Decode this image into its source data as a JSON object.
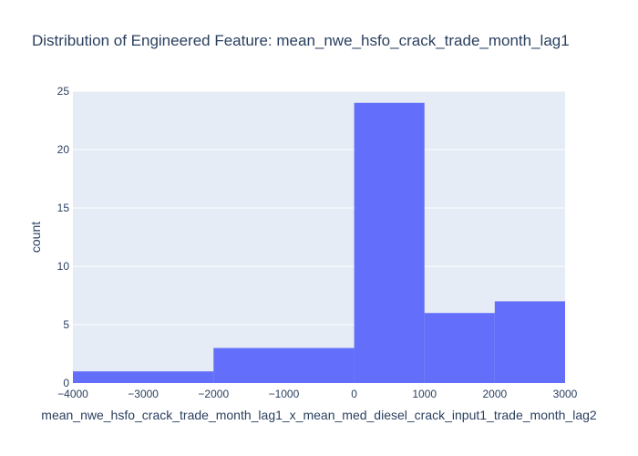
{
  "chart_data": {
    "type": "bar",
    "histogram": true,
    "title": "Distribution of Engineered Feature: mean_nwe_hsfo_crack_trade_month_lag1",
    "xlabel": "mean_nwe_hsfo_crack_trade_month_lag1_x_mean_med_diesel_crack_input1_trade_month_lag2",
    "ylabel": "count",
    "xlim": [
      -4000,
      3000
    ],
    "ylim": [
      0,
      25
    ],
    "grid": true,
    "bar_color": "#636efa",
    "plot_background": "#e5ecf6",
    "grid_color": "#ffffff",
    "text_color": "#2a3f5f",
    "bins": [
      {
        "start": -4000,
        "end": -2000,
        "count": 1
      },
      {
        "start": -2000,
        "end": 0,
        "count": 3
      },
      {
        "start": 0,
        "end": 1000,
        "count": 24
      },
      {
        "start": 1000,
        "end": 2000,
        "count": 6
      },
      {
        "start": 2000,
        "end": 3000,
        "count": 7
      }
    ],
    "x_ticks": [
      -4000,
      -3000,
      -2000,
      -1000,
      0,
      1000,
      2000,
      3000
    ],
    "x_tick_labels": [
      "−4000",
      "−3000",
      "−2000",
      "−1000",
      "0",
      "1000",
      "2000",
      "3000"
    ],
    "y_ticks": [
      0,
      5,
      10,
      15,
      20,
      25
    ],
    "y_tick_labels": [
      "0",
      "5",
      "10",
      "15",
      "20",
      "25"
    ]
  }
}
